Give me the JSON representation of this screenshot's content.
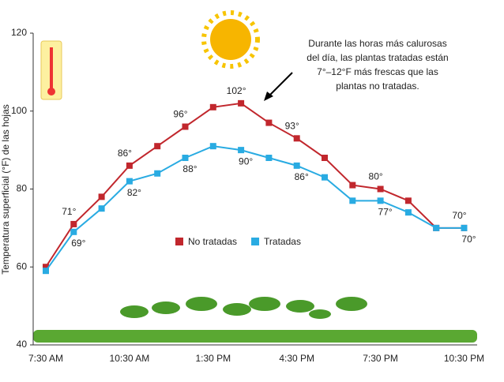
{
  "chart_data": {
    "type": "line",
    "y_label": "Temperatura superficial (°F) de las hojas",
    "annotation": [
      "Durante las horas más calurosas",
      "del día, las plantas tratadas están",
      "7°–12°F más frescas que las",
      "plantas no tratadas."
    ],
    "categories": [
      "7:30 AM",
      null,
      null,
      "10:30 AM",
      null,
      null,
      "1:30 PM",
      null,
      null,
      "4:30 PM",
      null,
      null,
      "7:30 PM",
      null,
      null,
      "10:30 PM"
    ],
    "series": [
      {
        "name": "No tratadas",
        "color": "#c1272d",
        "values": [
          60,
          71,
          78,
          86,
          91,
          96,
          101,
          102,
          97,
          93,
          88,
          81,
          80,
          77,
          70,
          70
        ],
        "value_labels": [
          null,
          "71°",
          null,
          "86°",
          null,
          "96°",
          null,
          "102°",
          null,
          "93°",
          null,
          null,
          "80°",
          null,
          null,
          "70°"
        ]
      },
      {
        "name": "Tratadas",
        "color": "#29abe2",
        "values": [
          59,
          69,
          75,
          82,
          84,
          88,
          91,
          90,
          88,
          86,
          83,
          77,
          77,
          74,
          70,
          70
        ],
        "value_labels": [
          null,
          "69°",
          null,
          "82°",
          null,
          "88°",
          null,
          "90°",
          null,
          "86°",
          null,
          null,
          "77°",
          null,
          null,
          "70°"
        ]
      }
    ],
    "ylim": [
      40,
      120
    ],
    "yticks": [
      40,
      60,
      80,
      100,
      120
    ],
    "legend": "center"
  }
}
